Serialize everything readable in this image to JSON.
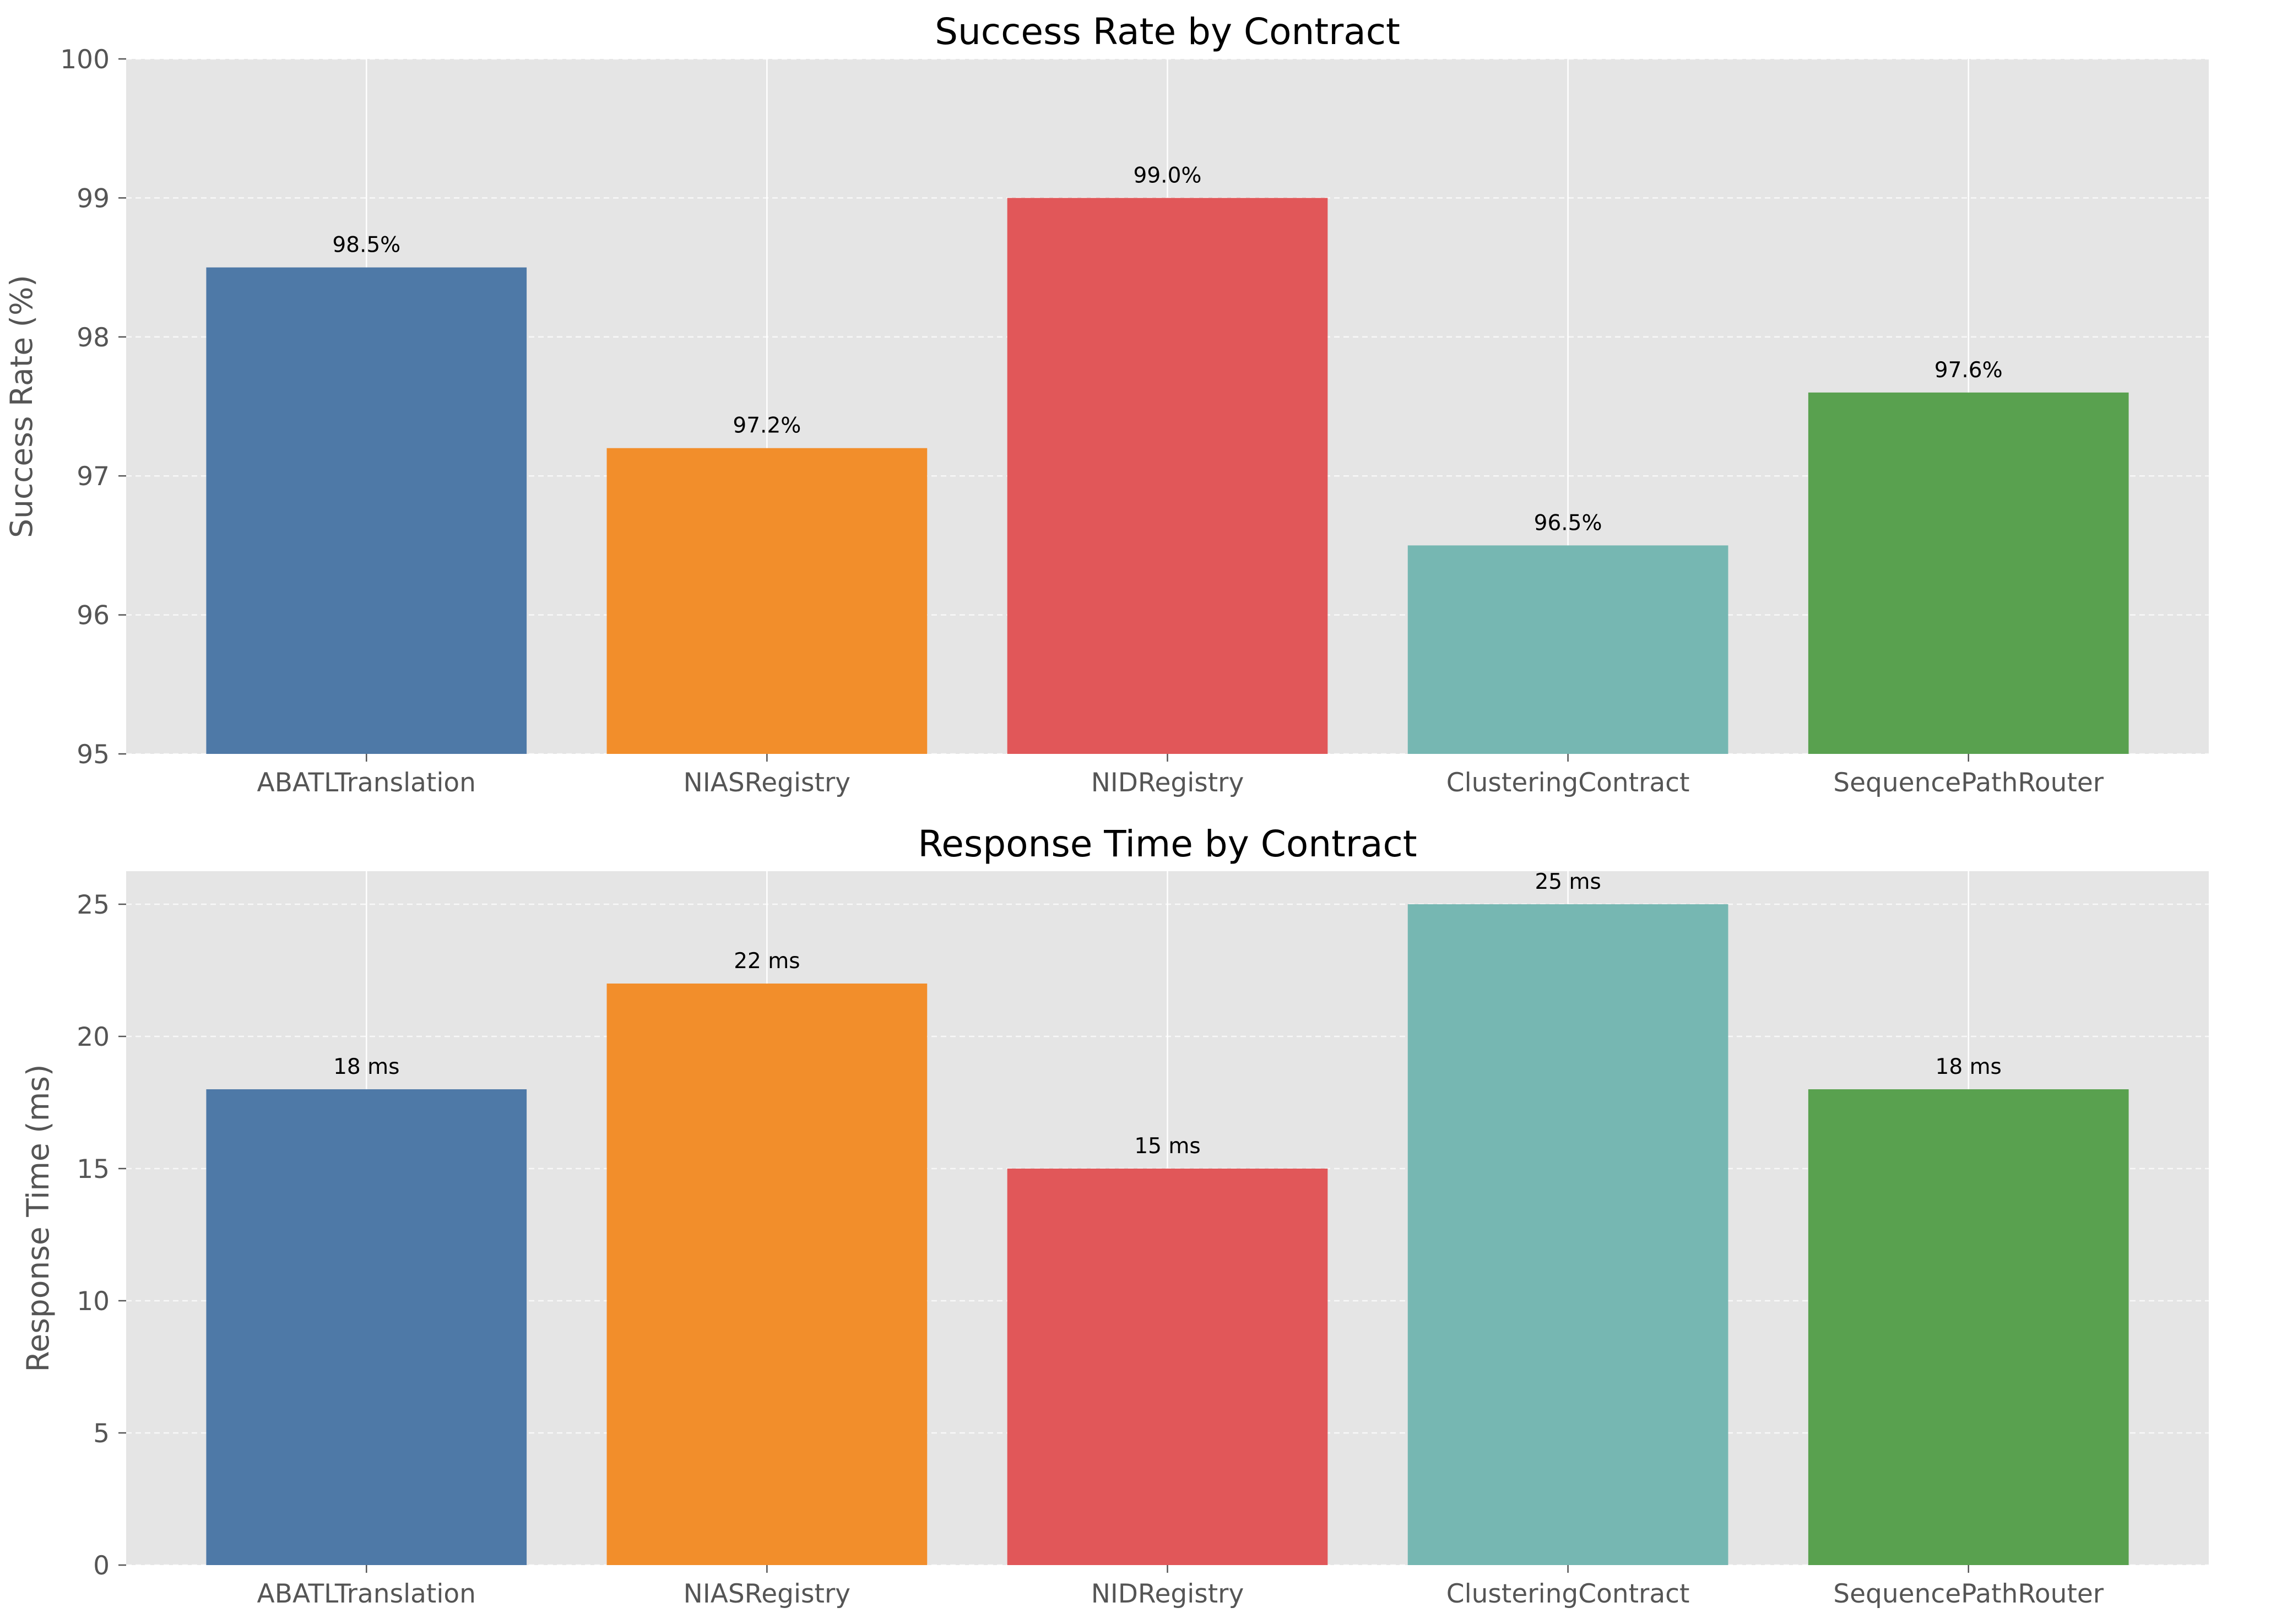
{
  "chart_data": [
    {
      "type": "bar",
      "title": "Success Rate by Contract",
      "xlabel": "",
      "ylabel": "Success Rate (%)",
      "categories": [
        "ABATLTranslation",
        "NIASRegistry",
        "NIDRegistry",
        "ClusteringContract",
        "SequencePathRouter"
      ],
      "values": [
        98.5,
        97.2,
        99.0,
        96.5,
        97.6
      ],
      "value_labels": [
        "98.5%",
        "97.2%",
        "99.0%",
        "96.5%",
        "97.6%"
      ],
      "colors": [
        "#4e79a7",
        "#f28e2b",
        "#e15759",
        "#76b7b2",
        "#59a14f"
      ],
      "ylim": [
        95,
        100
      ],
      "yticks": [
        95,
        96,
        97,
        98,
        99,
        100
      ],
      "ytick_labels": [
        "95",
        "96",
        "97",
        "98",
        "99",
        "100"
      ],
      "grid": true
    },
    {
      "type": "bar",
      "title": "Response Time by Contract",
      "xlabel": "",
      "ylabel": "Response Time (ms)",
      "categories": [
        "ABATLTranslation",
        "NIASRegistry",
        "NIDRegistry",
        "ClusteringContract",
        "SequencePathRouter"
      ],
      "values": [
        18,
        22,
        15,
        25,
        18
      ],
      "value_labels": [
        "18 ms",
        "22 ms",
        "15 ms",
        "25 ms",
        "18 ms"
      ],
      "colors": [
        "#4e79a7",
        "#f28e2b",
        "#e15759",
        "#76b7b2",
        "#59a14f"
      ],
      "ylim": [
        0,
        26.25
      ],
      "yticks": [
        0,
        5,
        10,
        15,
        20,
        25
      ],
      "ytick_labels": [
        "0",
        "5",
        "10",
        "15",
        "20",
        "25"
      ],
      "grid": true
    }
  ]
}
